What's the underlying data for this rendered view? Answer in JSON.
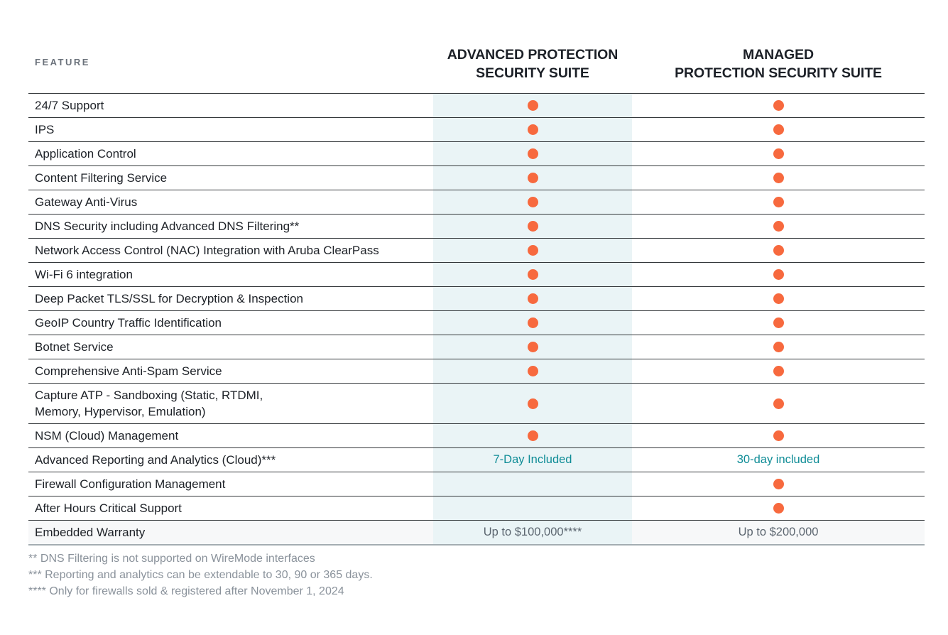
{
  "header": {
    "feature_label": "FEATURE",
    "columns": [
      {
        "name": "advanced",
        "label_line1": "ADVANCED PROTECTION",
        "label_line2": "SECURITY SUITE"
      },
      {
        "name": "managed",
        "label_line1": "MANAGED",
        "label_line2": "PROTECTION SECURITY SUITE"
      }
    ]
  },
  "rows": [
    {
      "feature": "24/7 Support",
      "advanced": {
        "type": "dot"
      },
      "managed": {
        "type": "dot"
      }
    },
    {
      "feature": "IPS",
      "advanced": {
        "type": "dot"
      },
      "managed": {
        "type": "dot"
      }
    },
    {
      "feature": "Application Control",
      "advanced": {
        "type": "dot"
      },
      "managed": {
        "type": "dot"
      }
    },
    {
      "feature": "Content Filtering Service",
      "advanced": {
        "type": "dot"
      },
      "managed": {
        "type": "dot"
      }
    },
    {
      "feature": "Gateway Anti-Virus",
      "advanced": {
        "type": "dot"
      },
      "managed": {
        "type": "dot"
      }
    },
    {
      "feature": "DNS Security including Advanced DNS Filtering**",
      "advanced": {
        "type": "dot"
      },
      "managed": {
        "type": "dot"
      }
    },
    {
      "feature": "Network Access Control (NAC) Integration with Aruba ClearPass",
      "advanced": {
        "type": "dot"
      },
      "managed": {
        "type": "dot"
      }
    },
    {
      "feature": "Wi-Fi 6 integration",
      "advanced": {
        "type": "dot"
      },
      "managed": {
        "type": "dot"
      }
    },
    {
      "feature": "Deep Packet TLS/SSL for Decryption & Inspection",
      "advanced": {
        "type": "dot"
      },
      "managed": {
        "type": "dot"
      }
    },
    {
      "feature": "GeoIP Country Traffic Identification",
      "advanced": {
        "type": "dot"
      },
      "managed": {
        "type": "dot"
      }
    },
    {
      "feature": "Botnet Service",
      "advanced": {
        "type": "dot"
      },
      "managed": {
        "type": "dot"
      }
    },
    {
      "feature": "Comprehensive Anti-Spam Service",
      "advanced": {
        "type": "dot"
      },
      "managed": {
        "type": "dot"
      }
    },
    {
      "feature": "Capture ATP -  Sandboxing (Static, RTDMI,\nMemory, Hypervisor, Emulation)",
      "advanced": {
        "type": "dot"
      },
      "managed": {
        "type": "dot"
      }
    },
    {
      "feature": "NSM (Cloud) Management",
      "advanced": {
        "type": "dot"
      },
      "managed": {
        "type": "dot"
      }
    },
    {
      "feature": "Advanced Reporting and Analytics (Cloud)***",
      "advanced": {
        "type": "text",
        "text": "7-Day Included",
        "style": "teal"
      },
      "managed": {
        "type": "text",
        "text": "30-day included",
        "style": "teal"
      }
    },
    {
      "feature": "Firewall Configuration Management",
      "advanced": {
        "type": "empty"
      },
      "managed": {
        "type": "dot"
      }
    },
    {
      "feature": "After Hours Critical Support",
      "advanced": {
        "type": "empty"
      },
      "managed": {
        "type": "dot"
      }
    },
    {
      "feature": "Embedded Warranty",
      "shaded": true,
      "advanced": {
        "type": "text",
        "text": "Up to $100,000****",
        "style": "gray"
      },
      "managed": {
        "type": "text",
        "text": "Up to $200,000",
        "style": "gray"
      }
    }
  ],
  "footnotes": [
    "** DNS Filtering is not supported on WireMode interfaces",
    "*** Reporting and analytics can be extendable to 30, 90 or 365 days.",
    "**** Only for firewalls sold & registered after November 1, 2024"
  ],
  "colors": {
    "dot": "#F7693E",
    "highlight_column_bg": "#EAF4F6",
    "teal_text": "#0E8C96",
    "gray_value_text": "#5C6670",
    "footnote_text": "#8A929B",
    "row_border": "#33373A",
    "table_bottom_border": "#A4ADB2",
    "header_text": "#1C2027",
    "feature_text": "#1D2127",
    "feature_label_text": "#6B727B",
    "shaded_row_bg": "#F7F8F9"
  }
}
